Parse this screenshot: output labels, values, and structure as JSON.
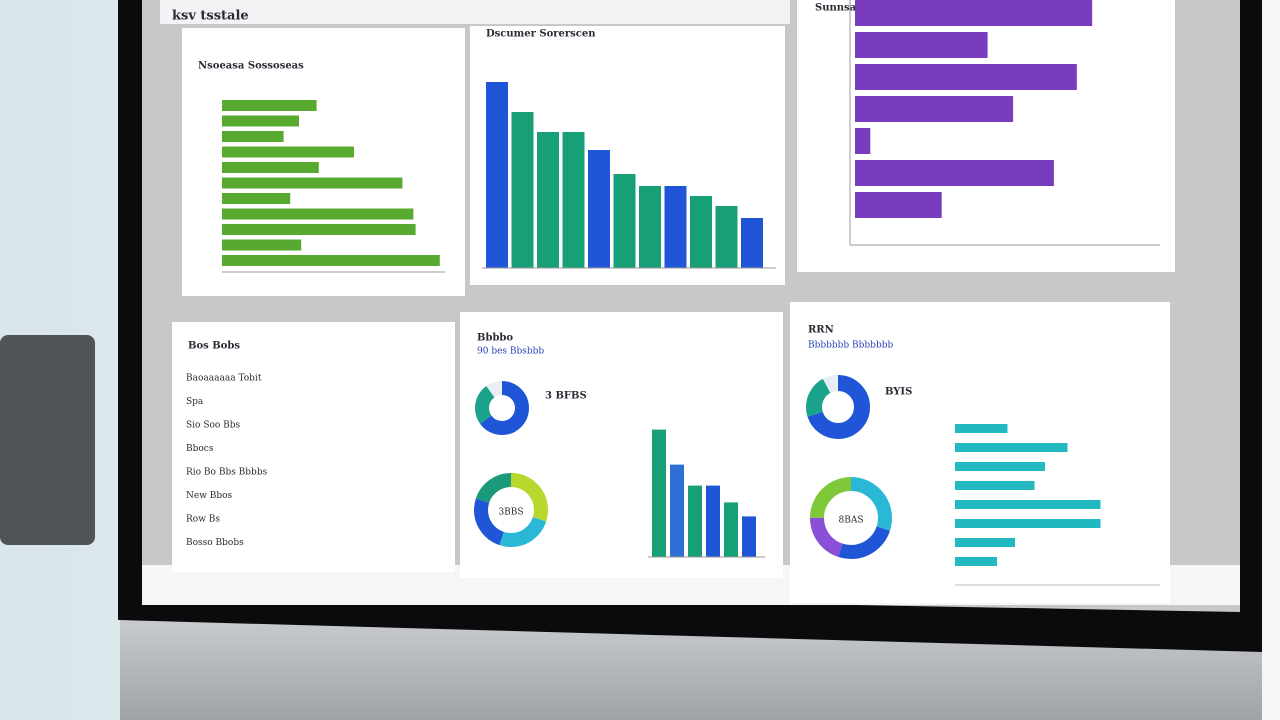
{
  "header": {
    "title": "ksv tsstale"
  },
  "panels": [
    {
      "title": "Nsoeasa Sossoseas",
      "color": "#58a930",
      "values": [
        43,
        35,
        28,
        60,
        44,
        82,
        31,
        87,
        88,
        36,
        99
      ]
    },
    {
      "title": "Dscumer Sorerscen",
      "colors": [
        "#1f55d6",
        "#17a078",
        "#17a078",
        "#17a078",
        "#1f55d6",
        "#17a078",
        "#17a078",
        "#1f55d6",
        "#17a078",
        "#17a078",
        "#1f55d6"
      ],
      "values": [
        93,
        78,
        68,
        68,
        59,
        47,
        41,
        41,
        36,
        31,
        25
      ]
    },
    {
      "title": "Sunnsad Ssss",
      "color": "#7a3cbf",
      "values": [
        93,
        52,
        87,
        62,
        6,
        78,
        34
      ]
    },
    {
      "title": "Bos Bobs",
      "items": [
        "Baoaaaaaa Tobit",
        "Spa",
        "Sio Soo Bbs",
        "Bbocs",
        "Rio Bo Bbs Bbbbs",
        "New Bbos",
        "Row Bs",
        "Bosso Bbobs"
      ]
    },
    {
      "title": "Bbbbo",
      "subtitle": "90 bes Bbsbbb",
      "donut_labels": [
        "3 BFBS",
        "3BBS"
      ],
      "donuts": [
        [
          {
            "value": 65,
            "color": "#1f55d6"
          },
          {
            "value": 25,
            "color": "#1aa28a"
          },
          {
            "value": 10,
            "color": "#e8eef5"
          }
        ],
        [
          {
            "value": 30,
            "color": "#b7d82c"
          },
          {
            "value": 25,
            "color": "#2ab8d6"
          },
          {
            "value": 25,
            "color": "#1f55d6"
          },
          {
            "value": 20,
            "color": "#1a9a7a"
          }
        ]
      ],
      "bar_colors": [
        "#17a078",
        "#2f6fd6",
        "#17a078",
        "#1f55d6",
        "#17a078",
        "#1f55d6"
      ],
      "bars": [
        91,
        66,
        51,
        51,
        39,
        29
      ]
    },
    {
      "title": "RRN",
      "subtitle": "Bbbbbbb Bbbbbbb",
      "donut_labels": [
        "BYIS",
        "8BAS"
      ],
      "donuts": [
        [
          {
            "value": 70,
            "color": "#1f55d6"
          },
          {
            "value": 22,
            "color": "#1aa28a"
          },
          {
            "value": 8,
            "color": "#e8eef5"
          }
        ],
        [
          {
            "value": 30,
            "color": "#2ab8d6"
          },
          {
            "value": 25,
            "color": "#1f55d6"
          },
          {
            "value": 20,
            "color": "#8a4fd6"
          },
          {
            "value": 25,
            "color": "#7fc83a"
          }
        ]
      ],
      "bar_color": "#22b8bf",
      "bars": [
        35,
        75,
        60,
        53,
        97,
        97,
        40,
        28
      ]
    }
  ]
}
